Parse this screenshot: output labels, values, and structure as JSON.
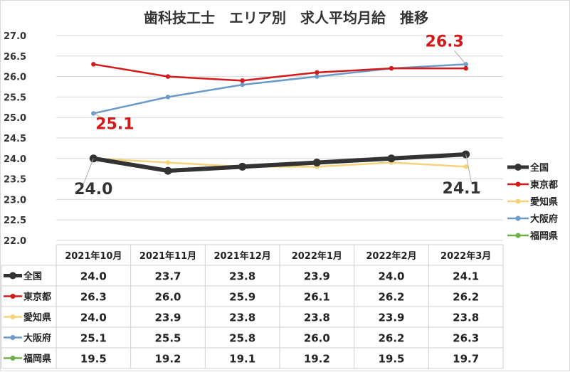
{
  "chart_data": {
    "type": "line",
    "title": "歯科技工士　エリア別　求人平均月給　推移",
    "categories": [
      "2021年10月",
      "2021年11月",
      "2021年12月",
      "2022年1月",
      "2022年2月",
      "2022年3月"
    ],
    "ylim": [
      22.0,
      27.0
    ],
    "yticks": [
      "27.0",
      "26.5",
      "26.0",
      "25.5",
      "25.0",
      "24.5",
      "24.0",
      "23.5",
      "23.0",
      "22.5",
      "22.0"
    ],
    "grid": true,
    "legend_position": "right",
    "series": [
      {
        "name": "全国",
        "color": "#333333",
        "values": [
          24.0,
          23.7,
          23.8,
          23.9,
          24.0,
          24.1
        ],
        "labels": [
          "24.0",
          "23.7",
          "23.8",
          "23.9",
          "24.0",
          "24.1"
        ],
        "thick": true
      },
      {
        "name": "東京都",
        "color": "#d31a1a",
        "values": [
          26.3,
          26.0,
          25.9,
          26.1,
          26.2,
          26.2
        ],
        "labels": [
          "26.3",
          "26.0",
          "25.9",
          "26.1",
          "26.2",
          "26.2"
        ]
      },
      {
        "name": "愛知県",
        "color": "#f5d37a",
        "values": [
          24.0,
          23.9,
          23.8,
          23.8,
          23.9,
          23.8
        ],
        "labels": [
          "24.0",
          "23.9",
          "23.8",
          "23.8",
          "23.9",
          "23.8"
        ]
      },
      {
        "name": "大阪府",
        "color": "#6a9ac8",
        "values": [
          25.1,
          25.5,
          25.8,
          26.0,
          26.2,
          26.3
        ],
        "labels": [
          "25.1",
          "25.5",
          "25.8",
          "26.0",
          "26.2",
          "26.3"
        ]
      },
      {
        "name": "福岡県",
        "color": "#70ad47",
        "values": [
          19.5,
          19.2,
          19.1,
          19.2,
          19.5,
          19.7
        ],
        "labels": [
          "19.5",
          "19.2",
          "19.1",
          "19.2",
          "19.5",
          "19.7"
        ]
      }
    ],
    "annotations": [
      {
        "text": "26.3",
        "series": "大阪府",
        "index": 5,
        "color": "#d31a1a"
      },
      {
        "text": "25.1",
        "series": "大阪府",
        "index": 0,
        "color": "#d31a1a"
      },
      {
        "text": "24.0",
        "series": "全国",
        "index": 0,
        "color": "#333333"
      },
      {
        "text": "24.1",
        "series": "全国",
        "index": 5,
        "color": "#333333"
      }
    ]
  }
}
